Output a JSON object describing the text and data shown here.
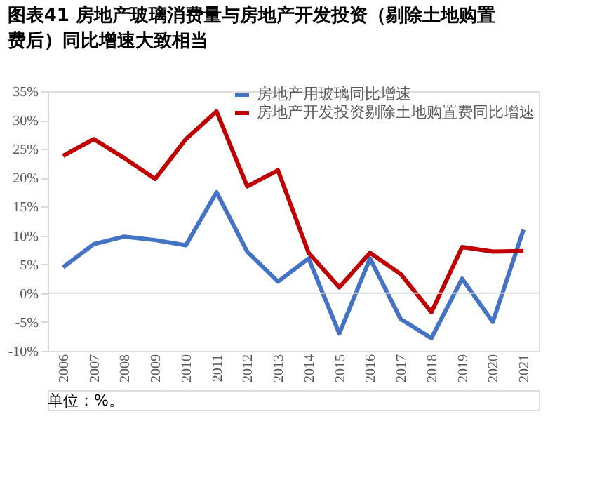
{
  "chart_data": {
    "type": "line",
    "title": "图表41 房地产玻璃消费量与房地产开发投资（剔除土地购置费后）同比增速大致相当",
    "categories": [
      "2006",
      "2007",
      "2008",
      "2009",
      "2010",
      "2011",
      "2012",
      "2013",
      "2014",
      "2015",
      "2016",
      "2017",
      "2018",
      "2019",
      "2020",
      "2021"
    ],
    "series": [
      {
        "name": "房地产用玻璃同比增速",
        "color": "#4472c4",
        "values": [
          4.5,
          8.5,
          9.8,
          9.2,
          8.3,
          17.5,
          7.2,
          2,
          6,
          -7,
          6,
          -4.5,
          -7.8,
          2.5,
          -5,
          11
        ]
      },
      {
        "name": "房地产开发投资剔除土地购置费同比增速",
        "color": "#c00000",
        "values": [
          23.8,
          26.7,
          23.4,
          19.8,
          26.7,
          31.5,
          18.5,
          21.3,
          7,
          1,
          7,
          3.3,
          -3.3,
          8,
          7.2,
          7.3
        ]
      }
    ],
    "ylim": [
      -10,
      35
    ],
    "yticks": [
      {
        "value": -10,
        "label": "-10%"
      },
      {
        "value": -5,
        "label": "-5%"
      },
      {
        "value": 0,
        "label": "0%"
      },
      {
        "value": 5,
        "label": "5%"
      },
      {
        "value": 10,
        "label": "10%"
      },
      {
        "value": 15,
        "label": "15%"
      },
      {
        "value": 20,
        "label": "20%"
      },
      {
        "value": 25,
        "label": "25%"
      },
      {
        "value": 30,
        "label": "30%"
      },
      {
        "value": 35,
        "label": "35%"
      }
    ],
    "ref_lines": [
      {
        "axis": "y",
        "value": 0,
        "color": "#d9d9d9"
      }
    ],
    "annotations": [
      "单位：%。"
    ],
    "legend": "top",
    "grid": false,
    "marker": "none",
    "line_style": "solid"
  }
}
